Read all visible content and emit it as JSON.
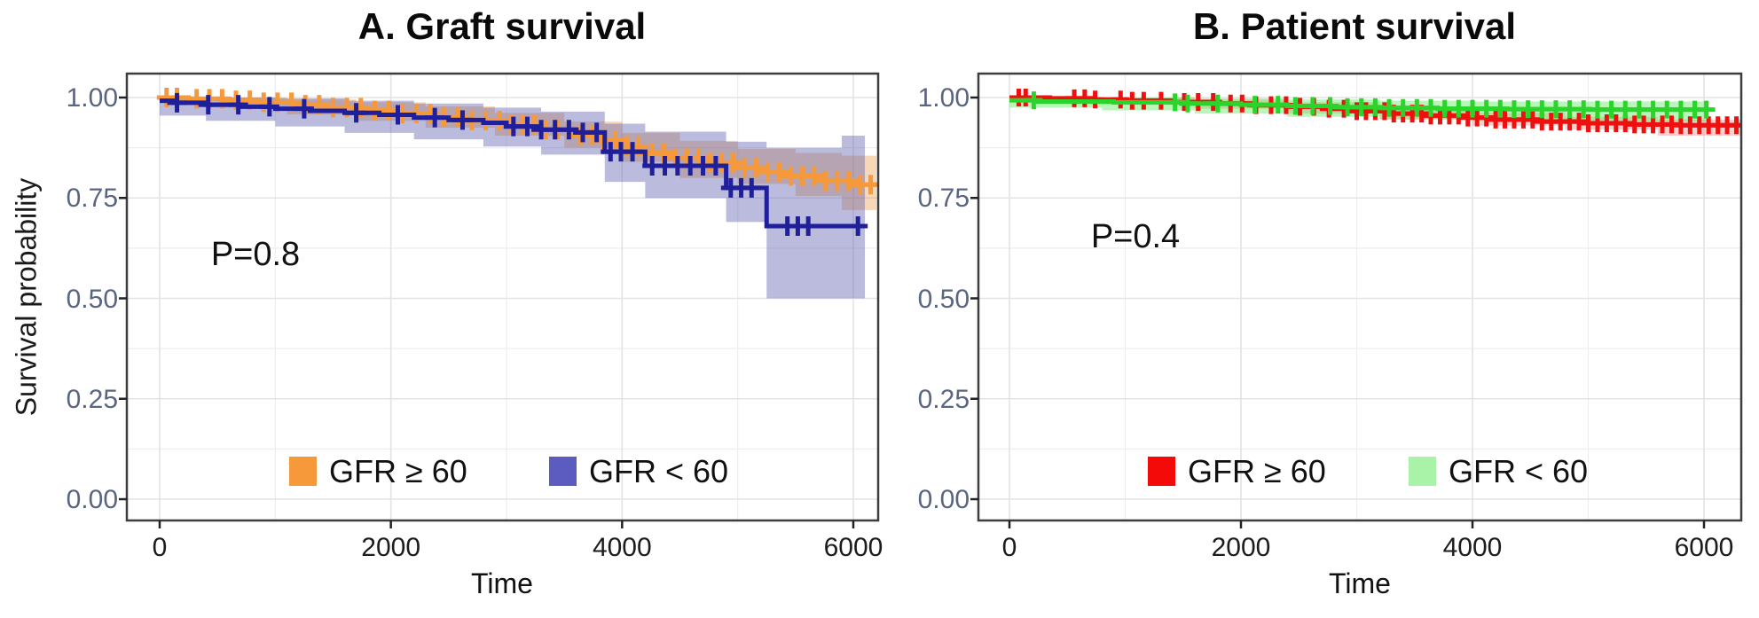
{
  "chart_data": [
    {
      "panel": "A",
      "type": "line",
      "subtype": "kaplan-meier-step",
      "title": "A. Graft survival",
      "annotation": "P=0.8",
      "xlabel": "Time",
      "ylabel": "Survival probability",
      "x_ticks": [
        0,
        2000,
        4000,
        6000
      ],
      "x_minor_ticks": [
        1000,
        3000,
        5000
      ],
      "y_ticks": [
        0,
        0.25,
        0.5,
        0.75,
        1
      ],
      "y_tick_labels": [
        "0.00",
        "0.25",
        "0.50",
        "0.75",
        "1.00"
      ],
      "y_minor_ticks": [
        0.125,
        0.375,
        0.625,
        0.875
      ],
      "xlim": [
        0,
        6200
      ],
      "ylim": [
        0,
        1
      ],
      "grid": true,
      "legend_position": "bottom-center-inside",
      "series": [
        {
          "name": "GFR ≥ 60",
          "slug": "gfr-ge-60",
          "color": "#F6993B",
          "band_color": "rgba(235,150,60,0.38)",
          "legend_key_color": "#F6993B",
          "steps": [
            [
              0,
              1.0
            ],
            [
              250,
              0.997
            ],
            [
              550,
              0.993
            ],
            [
              850,
              0.988
            ],
            [
              1150,
              0.982
            ],
            [
              1450,
              0.975
            ],
            [
              1750,
              0.968
            ],
            [
              2050,
              0.96
            ],
            [
              2350,
              0.952
            ],
            [
              2650,
              0.943
            ],
            [
              2950,
              0.932
            ],
            [
              3250,
              0.92
            ],
            [
              3550,
              0.905
            ],
            [
              3750,
              0.893
            ],
            [
              3950,
              0.878
            ],
            [
              4150,
              0.862
            ],
            [
              4400,
              0.85
            ],
            [
              4700,
              0.838
            ],
            [
              5000,
              0.825
            ],
            [
              5200,
              0.815
            ],
            [
              5400,
              0.805
            ],
            [
              5700,
              0.793
            ],
            [
              6000,
              0.783
            ],
            [
              6200,
              0.78
            ]
          ],
          "censor_times": [
            60,
            150,
            320,
            430,
            540,
            660,
            780,
            900,
            1020,
            1140,
            1260,
            1380,
            1500,
            1620,
            1740,
            1860,
            1980,
            2100,
            2220,
            2340,
            2460,
            2580,
            2700,
            2820,
            2940,
            3040,
            3140,
            3240,
            3340,
            3440,
            3540,
            3640,
            3740,
            3840,
            3940,
            4040,
            4140,
            4260,
            4360,
            4460,
            4560,
            4660,
            4760,
            4860,
            4960,
            5060,
            5160,
            5260,
            5360,
            5460,
            5560,
            5660,
            5760,
            5860,
            5960,
            6060,
            6150
          ],
          "ci_steps": [
            [
              0,
              0.99,
              1.0
            ],
            [
              500,
              0.975,
              1.0
            ],
            [
              1100,
              0.958,
              0.995
            ],
            [
              1700,
              0.942,
              0.988
            ],
            [
              2300,
              0.925,
              0.978
            ],
            [
              2900,
              0.905,
              0.962
            ],
            [
              3500,
              0.875,
              0.94
            ],
            [
              4000,
              0.84,
              0.912
            ],
            [
              4500,
              0.8,
              0.892
            ],
            [
              5000,
              0.785,
              0.872
            ],
            [
              5500,
              0.755,
              0.862
            ],
            [
              5900,
              0.72,
              0.855
            ],
            [
              6200,
              0.72,
              0.855
            ]
          ]
        },
        {
          "name": "GFR < 60",
          "slug": "gfr-lt-60",
          "color": "#1F1F9C",
          "band_color": "rgba(92,92,176,0.42)",
          "legend_key_color": "#5B5BC0",
          "steps": [
            [
              0,
              0.992
            ],
            [
              120,
              0.987
            ],
            [
              400,
              0.982
            ],
            [
              700,
              0.977
            ],
            [
              1000,
              0.972
            ],
            [
              1300,
              0.967
            ],
            [
              1600,
              0.962
            ],
            [
              1900,
              0.957
            ],
            [
              2200,
              0.95
            ],
            [
              2500,
              0.944
            ],
            [
              2800,
              0.937
            ],
            [
              3000,
              0.928
            ],
            [
              3300,
              0.92
            ],
            [
              3600,
              0.913
            ],
            [
              3850,
              0.865
            ],
            [
              4200,
              0.83
            ],
            [
              4900,
              0.775
            ],
            [
              5250,
              0.68
            ],
            [
              6100,
              0.68
            ]
          ],
          "censor_times": [
            150,
            420,
            680,
            950,
            1250,
            1700,
            2060,
            2380,
            2620,
            3060,
            3180,
            3300,
            3420,
            3540,
            3660,
            3780,
            3900,
            3990,
            4090,
            4260,
            4370,
            4480,
            4590,
            4700,
            4810,
            4940,
            5030,
            5120,
            5430,
            5520,
            5610,
            6040
          ],
          "ci_steps": [
            [
              0,
              0.955,
              1.0
            ],
            [
              400,
              0.942,
              1.0
            ],
            [
              1000,
              0.928,
              0.998
            ],
            [
              1600,
              0.912,
              0.992
            ],
            [
              2200,
              0.896,
              0.985
            ],
            [
              2800,
              0.878,
              0.975
            ],
            [
              3300,
              0.858,
              0.965
            ],
            [
              3850,
              0.79,
              0.935
            ],
            [
              4200,
              0.75,
              0.915
            ],
            [
              4900,
              0.69,
              0.89
            ],
            [
              5250,
              0.5,
              0.875
            ],
            [
              5900,
              0.5,
              0.905
            ],
            [
              6100,
              0.5,
              0.905
            ]
          ]
        }
      ]
    },
    {
      "panel": "B",
      "type": "line",
      "subtype": "kaplan-meier-step",
      "title": "B. Patient survival",
      "annotation": "P=0.4",
      "xlabel": "Time",
      "ylabel": "",
      "x_ticks": [
        0,
        2000,
        4000,
        6000
      ],
      "x_minor_ticks": [
        1000,
        3000,
        5000
      ],
      "y_ticks": [
        0,
        0.25,
        0.5,
        0.75,
        1
      ],
      "y_tick_labels": [
        "0.00",
        "0.25",
        "0.50",
        "0.75",
        "1.00"
      ],
      "y_minor_ticks": [
        0.125,
        0.375,
        0.625,
        0.875
      ],
      "xlim": [
        0,
        6320
      ],
      "ylim": [
        0,
        1
      ],
      "grid": true,
      "legend_position": "bottom-center-inside",
      "series": [
        {
          "name": "GFR ≥ 60",
          "slug": "gfr-ge-60",
          "color": "#EE0F0F",
          "band_color": "rgba(245,80,80,0.28)",
          "legend_key_color": "#F50A0A",
          "steps": [
            [
              0,
              1.0
            ],
            [
              350,
              0.998
            ],
            [
              700,
              0.995
            ],
            [
              1000,
              0.992
            ],
            [
              1400,
              0.989
            ],
            [
              1800,
              0.985
            ],
            [
              2100,
              0.981
            ],
            [
              2400,
              0.977
            ],
            [
              2700,
              0.972
            ],
            [
              3000,
              0.966
            ],
            [
              3300,
              0.96
            ],
            [
              3600,
              0.955
            ],
            [
              3900,
              0.95
            ],
            [
              4200,
              0.945
            ],
            [
              4600,
              0.94
            ],
            [
              5000,
              0.936
            ],
            [
              5400,
              0.933
            ],
            [
              5800,
              0.931
            ],
            [
              6320,
              0.93
            ]
          ],
          "censor_times": [
            80,
            140,
            560,
            650,
            740,
            960,
            1060,
            1160,
            1310,
            1510,
            1630,
            1760,
            1910,
            2010,
            2130,
            2260,
            2390,
            2510,
            2630,
            2760,
            2890,
            3000,
            3080,
            3160,
            3240,
            3320,
            3400,
            3480,
            3560,
            3640,
            3720,
            3800,
            3880,
            3960,
            4040,
            4120,
            4200,
            4280,
            4360,
            4440,
            4520,
            4600,
            4680,
            4760,
            4840,
            4920,
            5000,
            5080,
            5160,
            5240,
            5320,
            5400,
            5480,
            5560,
            5640,
            5720,
            5800,
            5880,
            5960,
            6040,
            6120,
            6200,
            6280
          ],
          "ci_steps": [
            [
              0,
              0.993,
              1.0
            ],
            [
              800,
              0.982,
              1.0
            ],
            [
              1600,
              0.972,
              0.995
            ],
            [
              2400,
              0.96,
              0.988
            ],
            [
              3200,
              0.945,
              0.975
            ],
            [
              4000,
              0.93,
              0.962
            ],
            [
              4800,
              0.92,
              0.952
            ],
            [
              5600,
              0.908,
              0.945
            ],
            [
              6320,
              0.905,
              0.945
            ]
          ]
        },
        {
          "name": "GFR < 60",
          "slug": "gfr-lt-60",
          "color": "#2BD42B",
          "band_color": "rgba(100,235,100,0.45)",
          "legend_key_color": "#A9F3A9",
          "steps": [
            [
              0,
              0.993
            ],
            [
              250,
              0.99
            ],
            [
              900,
              0.988
            ],
            [
              1500,
              0.985
            ],
            [
              2000,
              0.982
            ],
            [
              2400,
              0.979
            ],
            [
              2800,
              0.976
            ],
            [
              3200,
              0.974
            ],
            [
              3700,
              0.972
            ],
            [
              4300,
              0.971
            ],
            [
              5000,
              0.97
            ],
            [
              6040,
              0.97
            ]
          ],
          "censor_times": [
            210,
            1430,
            1540,
            1800,
            2120,
            2320,
            2470,
            2620,
            2770,
            2920,
            3040,
            3160,
            3280,
            3400,
            3520,
            3640,
            3760,
            3880,
            4000,
            4120,
            4240,
            4360,
            4480,
            4600,
            4720,
            4840,
            4960,
            5080,
            5200,
            5320,
            5440,
            5560,
            5680,
            5800,
            5920,
            6020
          ],
          "ci_steps": [
            [
              0,
              0.975,
              1.0
            ],
            [
              800,
              0.968,
              1.0
            ],
            [
              1600,
              0.96,
              0.998
            ],
            [
              2400,
              0.952,
              0.995
            ],
            [
              3200,
              0.946,
              0.992
            ],
            [
              4000,
              0.942,
              0.99
            ],
            [
              4800,
              0.94,
              0.99
            ],
            [
              6040,
              0.94,
              0.99
            ]
          ]
        }
      ]
    }
  ]
}
